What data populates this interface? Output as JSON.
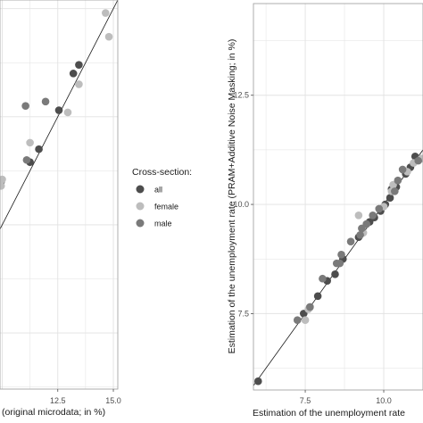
{
  "chart_data": [
    {
      "type": "scatter",
      "xlabel": "(original microdata; in %)",
      "ylabel": "",
      "xlim": [
        9.9,
        15.2
      ],
      "ylim": [
        6.2,
        15.2
      ],
      "xticks": [
        12.5,
        15.0
      ],
      "xtick_labels": [
        "12.5",
        "15.0"
      ],
      "ygrid": [
        7.5,
        10.0,
        12.5,
        15.0
      ],
      "grid": true,
      "reference_line": "y = x",
      "series": [
        {
          "name": "all",
          "points": [
            [
              13.2,
              13.5
            ],
            [
              13.45,
              13.7
            ],
            [
              12.55,
              12.65
            ],
            [
              11.65,
              11.75
            ],
            [
              11.25,
              11.45
            ],
            [
              9.95,
              11.0
            ]
          ]
        },
        {
          "name": "female",
          "points": [
            [
              14.65,
              14.9
            ],
            [
              14.8,
              14.35
            ],
            [
              13.45,
              13.25
            ],
            [
              12.95,
              12.6
            ],
            [
              11.25,
              11.9
            ],
            [
              10.0,
              11.05
            ],
            [
              9.95,
              10.9
            ]
          ]
        },
        {
          "name": "male",
          "points": [
            [
              11.95,
              12.85
            ],
            [
              11.05,
              12.75
            ],
            [
              11.1,
              11.5
            ]
          ]
        }
      ]
    },
    {
      "type": "scatter",
      "xlabel": "Estimation of the unemployment rate",
      "ylabel": "Estimation of the unemployment rate (PRAM+Additive Noise Masking; in %)",
      "xlim": [
        5.85,
        11.25
      ],
      "ylim": [
        5.75,
        14.6
      ],
      "xticks": [
        7.5,
        10.0
      ],
      "xtick_labels": [
        "7.5",
        "10.0"
      ],
      "yticks": [
        7.5,
        10.0,
        12.5
      ],
      "ytick_labels": [
        "7.5",
        "10.0",
        "12.5"
      ],
      "grid": true,
      "reference_line": "y = x",
      "series": [
        {
          "name": "all",
          "points": [
            [
              11.0,
              11.1
            ],
            [
              10.85,
              10.85
            ],
            [
              10.7,
              10.7
            ],
            [
              10.4,
              10.4
            ],
            [
              10.25,
              10.35
            ],
            [
              10.2,
              10.15
            ],
            [
              10.05,
              10.0
            ],
            [
              9.9,
              9.85
            ],
            [
              9.7,
              9.7
            ],
            [
              9.55,
              9.6
            ],
            [
              9.2,
              9.25
            ],
            [
              8.7,
              8.75
            ],
            [
              8.45,
              8.4
            ],
            [
              8.2,
              8.25
            ],
            [
              7.9,
              7.9
            ],
            [
              7.65,
              7.65
            ],
            [
              7.45,
              7.5
            ],
            [
              6.0,
              5.95
            ]
          ]
        },
        {
          "name": "female",
          "points": [
            [
              11.2,
              11.05
            ],
            [
              10.95,
              10.95
            ],
            [
              10.75,
              10.75
            ],
            [
              10.3,
              10.45
            ],
            [
              10.25,
              10.3
            ],
            [
              10.0,
              9.95
            ],
            [
              9.2,
              9.75
            ],
            [
              9.35,
              9.35
            ],
            [
              7.6,
              7.6
            ],
            [
              7.5,
              7.35
            ]
          ]
        },
        {
          "name": "male",
          "points": [
            [
              11.1,
              11.0
            ],
            [
              10.6,
              10.8
            ],
            [
              10.45,
              10.55
            ],
            [
              10.35,
              10.3
            ],
            [
              9.85,
              9.9
            ],
            [
              9.65,
              9.75
            ],
            [
              9.45,
              9.55
            ],
            [
              9.3,
              9.45
            ],
            [
              9.25,
              9.3
            ],
            [
              8.95,
              9.15
            ],
            [
              8.65,
              8.85
            ],
            [
              8.6,
              8.65
            ],
            [
              8.5,
              8.65
            ],
            [
              8.05,
              8.3
            ],
            [
              7.65,
              7.65
            ],
            [
              7.25,
              7.35
            ]
          ]
        }
      ]
    }
  ],
  "legend": {
    "title": "Cross-section:",
    "items": [
      {
        "label": "all",
        "color": "#4d4d4d"
      },
      {
        "label": "female",
        "color": "#bdbdbd"
      },
      {
        "label": "male",
        "color": "#7a7a7a"
      }
    ]
  },
  "colors": {
    "all": "#4d4d4d",
    "female": "#bdbdbd",
    "male": "#7a7a7a",
    "grid": "#e2e2e2",
    "panel_border": "#999999"
  }
}
